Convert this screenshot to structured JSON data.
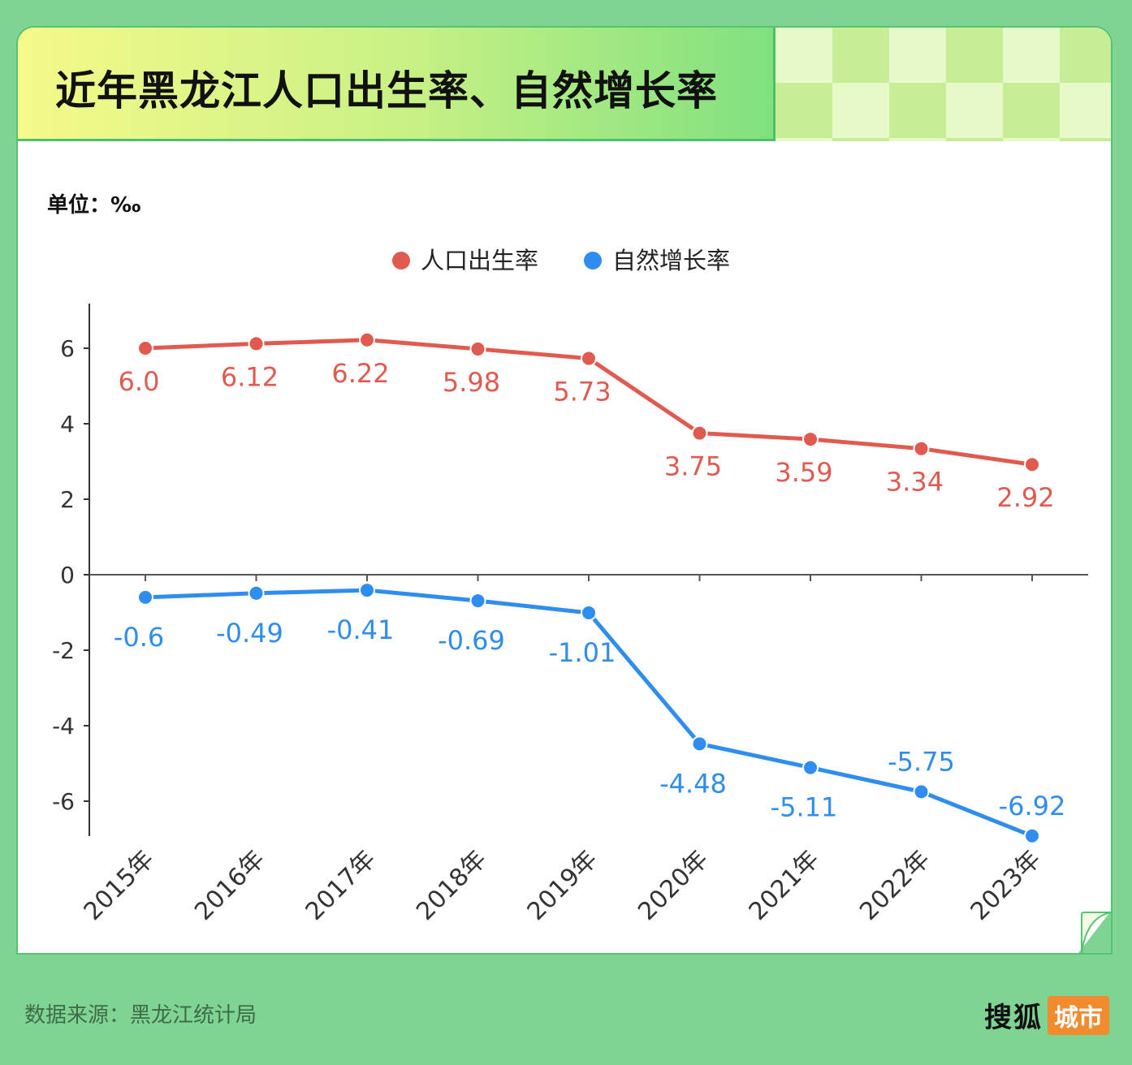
{
  "title": "近年黑龙江人口出生率、自然增长率",
  "unit": "单位：‰",
  "source": "数据来源：黑龙江统计局",
  "logo": {
    "main": "搜狐",
    "tag": "城市"
  },
  "colors": {
    "birth": "#e05a50",
    "growth": "#2f8df0",
    "background": "#7fd494",
    "logo_tag": "#f28a2e"
  },
  "chart_data": {
    "type": "line",
    "categories": [
      "2015年",
      "2016年",
      "2017年",
      "2018年",
      "2019年",
      "2020年",
      "2021年",
      "2022年",
      "2023年"
    ],
    "series": [
      {
        "name": "人口出生率",
        "values": [
          6.0,
          6.12,
          6.22,
          5.98,
          5.73,
          3.75,
          3.59,
          3.34,
          2.92
        ],
        "labels": [
          "6.0",
          "6.12",
          "6.22",
          "5.98",
          "5.73",
          "3.75",
          "3.59",
          "3.34",
          "2.92"
        ],
        "color": "#e05a50"
      },
      {
        "name": "自然增长率",
        "values": [
          -0.6,
          -0.49,
          -0.41,
          -0.69,
          -1.01,
          -4.48,
          -5.11,
          -5.75,
          -6.92
        ],
        "labels": [
          "-0.6",
          "-0.49",
          "-0.41",
          "-0.69",
          "-1.01",
          "-4.48",
          "-5.11",
          "-5.75",
          "-6.92"
        ],
        "color": "#2f8df0"
      }
    ],
    "yticks": [
      6,
      4,
      2,
      0,
      -2,
      -4,
      -6
    ],
    "ylim": [
      -6.92,
      7.2
    ],
    "legend": "top-center",
    "grid": false
  }
}
